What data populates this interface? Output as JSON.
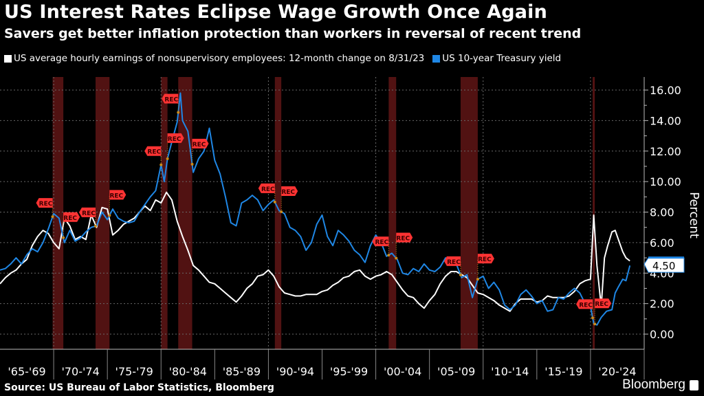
{
  "header": {
    "title": "US Interest Rates Eclipse Wage Growth Once Again",
    "subtitle": "Savers get better inflation protection than workers in reversal of recent trend"
  },
  "footer": {
    "source": "Source: US Bureau of Labor Statistics, Bloomberg",
    "brand": "Bloomberg"
  },
  "colors": {
    "background": "#000000",
    "wages": "#ffffff",
    "treasury": "#1f87e5",
    "recession_band": "#5a1414",
    "rec_marker": "#ff3333",
    "grid": "#6a6a6a"
  },
  "chart_data": {
    "type": "line",
    "title": "US Interest Rates Eclipse Wage Growth Once Again",
    "subtitle": "Savers get better inflation protection than workers in reversal of recent trend",
    "xlabel": "",
    "ylabel": "Percent",
    "xlim": [
      1965,
      2025
    ],
    "ylim": [
      -1,
      17
    ],
    "yticks": [
      0,
      2,
      4,
      6,
      8,
      10,
      12,
      14,
      16
    ],
    "ytick_labels": [
      "0.00",
      "2.00",
      "4.00",
      "6.00",
      "8.00",
      "10.00",
      "12.00",
      "14.00",
      "16.00"
    ],
    "grid": true,
    "legend_position": "top-left",
    "x_category_labels": [
      "'65-'69",
      "'70-'74",
      "'75-'79",
      "'80-'84",
      "'85-'89",
      "'90-'94",
      "'95-'99",
      "'00-'04",
      "'05-'09",
      "'10-'14",
      "'15-'19",
      "'20-'24"
    ],
    "last_value_label": {
      "series": "US 10-year Treasury yield",
      "value": "4.50"
    },
    "recessions": [
      {
        "start": 1969.9,
        "end": 1970.9
      },
      {
        "start": 1973.9,
        "end": 1975.2
      },
      {
        "start": 1980.0,
        "end": 1980.6
      },
      {
        "start": 1981.6,
        "end": 1982.9
      },
      {
        "start": 1990.6,
        "end": 1991.2
      },
      {
        "start": 2001.2,
        "end": 2001.9
      },
      {
        "start": 2007.9,
        "end": 2009.5
      },
      {
        "start": 2020.2,
        "end": 2020.4
      }
    ],
    "rec_marker_label": "REC",
    "series": [
      {
        "name": "US average hourly earnings of nonsupervisory employees: 12-month change on 8/31/23",
        "x": [
          1965.0,
          1965.5,
          1966.0,
          1966.5,
          1967.0,
          1967.5,
          1968.0,
          1968.5,
          1969.0,
          1969.5,
          1970.0,
          1970.5,
          1971.0,
          1971.5,
          1972.0,
          1972.5,
          1973.0,
          1973.5,
          1974.0,
          1974.5,
          1975.0,
          1975.5,
          1976.0,
          1976.5,
          1977.0,
          1977.5,
          1978.0,
          1978.5,
          1979.0,
          1979.5,
          1980.0,
          1980.5,
          1981.0,
          1981.5,
          1982.0,
          1982.5,
          1983.0,
          1983.5,
          1984.0,
          1984.5,
          1985.0,
          1985.5,
          1986.0,
          1986.5,
          1987.0,
          1987.5,
          1988.0,
          1988.5,
          1989.0,
          1989.5,
          1990.0,
          1990.5,
          1991.0,
          1991.5,
          1992.0,
          1992.5,
          1993.0,
          1993.5,
          1994.0,
          1994.5,
          1995.0,
          1995.5,
          1996.0,
          1996.5,
          1997.0,
          1997.5,
          1998.0,
          1998.5,
          1999.0,
          1999.5,
          2000.0,
          2000.5,
          2001.0,
          2001.5,
          2002.0,
          2002.5,
          2003.0,
          2003.5,
          2004.0,
          2004.5,
          2005.0,
          2005.5,
          2006.0,
          2006.5,
          2007.0,
          2007.5,
          2008.0,
          2008.5,
          2009.0,
          2009.5,
          2010.0,
          2010.5,
          2011.0,
          2011.5,
          2012.0,
          2012.5,
          2013.0,
          2013.5,
          2014.0,
          2014.5,
          2015.0,
          2015.5,
          2016.0,
          2016.5,
          2017.0,
          2017.5,
          2018.0,
          2018.5,
          2019.0,
          2019.5,
          2020.0,
          2020.3,
          2020.6,
          2021.0,
          2021.3,
          2021.6,
          2022.0,
          2022.3,
          2022.6,
          2023.0,
          2023.3,
          2023.67
        ],
        "values": [
          3.3,
          3.7,
          4.0,
          4.2,
          4.6,
          4.9,
          5.8,
          6.4,
          6.8,
          6.6,
          6.0,
          5.6,
          7.6,
          7.1,
          6.2,
          6.4,
          6.2,
          7.8,
          7.0,
          8.3,
          8.2,
          6.5,
          6.8,
          7.2,
          7.4,
          7.6,
          8.0,
          8.4,
          8.1,
          8.8,
          8.6,
          9.3,
          8.8,
          7.4,
          6.4,
          5.5,
          4.5,
          4.2,
          3.8,
          3.4,
          3.3,
          3.0,
          2.7,
          2.4,
          2.1,
          2.5,
          3.0,
          3.3,
          3.8,
          3.9,
          4.2,
          3.8,
          3.1,
          2.7,
          2.6,
          2.5,
          2.5,
          2.6,
          2.6,
          2.6,
          2.8,
          2.9,
          3.2,
          3.4,
          3.7,
          3.8,
          4.1,
          4.2,
          3.8,
          3.6,
          3.8,
          3.9,
          4.1,
          3.9,
          3.4,
          2.9,
          2.5,
          2.4,
          2.0,
          1.7,
          2.2,
          2.6,
          3.3,
          3.8,
          4.1,
          4.1,
          3.9,
          3.7,
          3.2,
          2.7,
          2.6,
          2.4,
          2.2,
          1.9,
          1.7,
          1.5,
          2.0,
          2.3,
          2.3,
          2.3,
          2.1,
          2.2,
          2.5,
          2.4,
          2.4,
          2.4,
          2.5,
          2.8,
          3.3,
          3.5,
          3.6,
          7.8,
          4.5,
          1.8,
          5.0,
          5.8,
          6.7,
          6.8,
          6.2,
          5.4,
          5.0,
          4.8
        ]
      },
      {
        "name": "US 10-year Treasury yield",
        "x": [
          1965.0,
          1965.5,
          1966.0,
          1966.5,
          1967.0,
          1967.5,
          1968.0,
          1968.5,
          1969.0,
          1969.5,
          1970.0,
          1970.5,
          1971.0,
          1971.5,
          1972.0,
          1972.5,
          1973.0,
          1973.5,
          1974.0,
          1974.5,
          1975.0,
          1975.5,
          1976.0,
          1976.5,
          1977.0,
          1977.5,
          1978.0,
          1978.5,
          1979.0,
          1979.5,
          1980.0,
          1980.3,
          1980.6,
          1981.0,
          1981.5,
          1981.8,
          1982.0,
          1982.5,
          1983.0,
          1983.5,
          1984.0,
          1984.5,
          1985.0,
          1985.5,
          1986.0,
          1986.5,
          1987.0,
          1987.5,
          1988.0,
          1988.5,
          1989.0,
          1989.5,
          1990.0,
          1990.5,
          1991.0,
          1991.5,
          1992.0,
          1992.5,
          1993.0,
          1993.5,
          1994.0,
          1994.5,
          1995.0,
          1995.5,
          1996.0,
          1996.5,
          1997.0,
          1997.5,
          1998.0,
          1998.5,
          1999.0,
          1999.5,
          2000.0,
          2000.5,
          2001.0,
          2001.5,
          2002.0,
          2002.5,
          2003.0,
          2003.5,
          2004.0,
          2004.5,
          2005.0,
          2005.5,
          2006.0,
          2006.5,
          2007.0,
          2007.5,
          2008.0,
          2008.5,
          2009.0,
          2009.5,
          2010.0,
          2010.5,
          2011.0,
          2011.5,
          2012.0,
          2012.5,
          2013.0,
          2013.5,
          2014.0,
          2014.5,
          2015.0,
          2015.5,
          2016.0,
          2016.5,
          2017.0,
          2017.5,
          2018.0,
          2018.5,
          2019.0,
          2019.5,
          2020.0,
          2020.3,
          2020.6,
          2021.0,
          2021.5,
          2022.0,
          2022.3,
          2022.6,
          2023.0,
          2023.3,
          2023.67
        ],
        "values": [
          4.2,
          4.3,
          4.6,
          5.0,
          4.6,
          5.2,
          5.6,
          5.4,
          6.0,
          6.9,
          7.9,
          7.6,
          6.0,
          6.8,
          6.1,
          6.3,
          6.7,
          7.0,
          7.1,
          8.0,
          7.5,
          8.2,
          7.6,
          7.4,
          7.3,
          7.4,
          8.0,
          8.5,
          9.0,
          9.4,
          11.1,
          10.0,
          11.5,
          12.6,
          13.9,
          15.8,
          14.0,
          13.3,
          10.6,
          11.5,
          12.0,
          13.5,
          11.4,
          10.5,
          9.0,
          7.3,
          7.1,
          8.6,
          8.8,
          9.1,
          8.8,
          8.1,
          8.5,
          8.8,
          8.1,
          7.9,
          7.0,
          6.8,
          6.4,
          5.5,
          6.0,
          7.2,
          7.8,
          6.4,
          5.8,
          6.8,
          6.5,
          6.1,
          5.5,
          5.2,
          4.7,
          5.8,
          6.5,
          6.0,
          5.1,
          5.3,
          4.9,
          4.0,
          3.9,
          4.3,
          4.1,
          4.6,
          4.2,
          4.1,
          4.4,
          5.0,
          4.7,
          4.6,
          3.7,
          3.9,
          2.4,
          3.6,
          3.8,
          3.0,
          3.4,
          2.9,
          1.9,
          1.6,
          1.9,
          2.6,
          2.9,
          2.5,
          2.0,
          2.2,
          1.5,
          1.6,
          2.4,
          2.3,
          2.7,
          3.0,
          2.7,
          2.0,
          1.8,
          0.7,
          0.6,
          1.1,
          1.5,
          1.6,
          2.7,
          3.1,
          3.6,
          3.5,
          4.5
        ]
      }
    ]
  }
}
